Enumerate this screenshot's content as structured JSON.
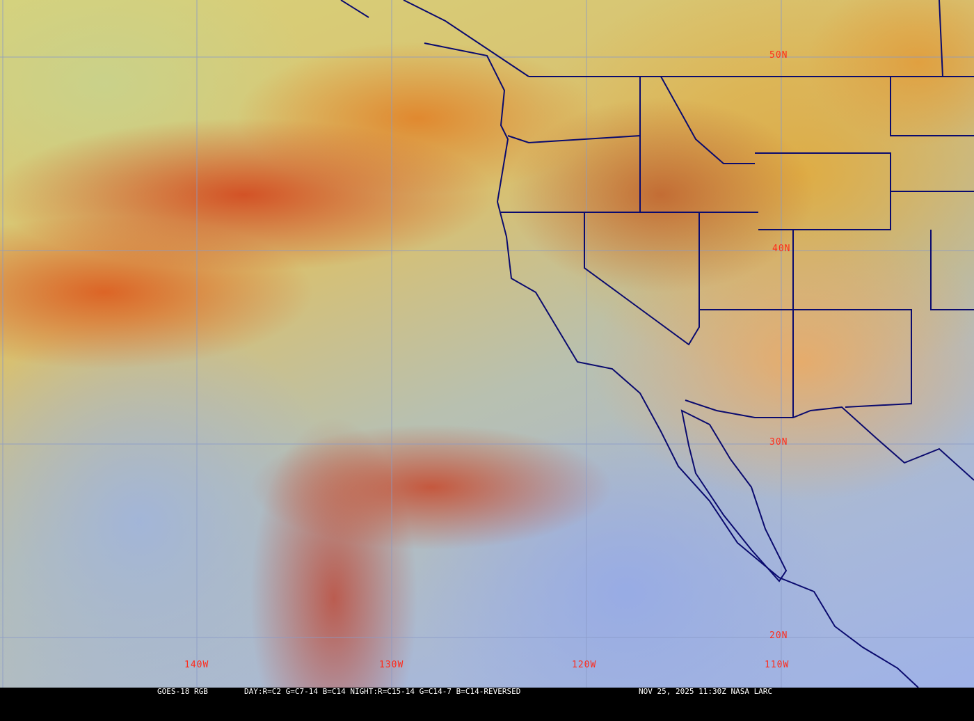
{
  "map": {
    "latitude_labels": [
      "50N",
      "40N",
      "30N",
      "20N"
    ],
    "longitude_labels": [
      "140W",
      "130W",
      "120W",
      "110W"
    ],
    "colors": {
      "grid": "#8a9ac8",
      "borders": "#0a0a6e",
      "labels": "#ff2a1a"
    }
  },
  "caption": {
    "product": "GOES-18 RGB",
    "recipe": "DAY:R=C2 G=C7-14 B=C14 NIGHT:R=C15-14 G=C14-7 B=C14-REVERSED",
    "timestamp": "NOV 25, 2025 11:30Z NASA LARC"
  }
}
